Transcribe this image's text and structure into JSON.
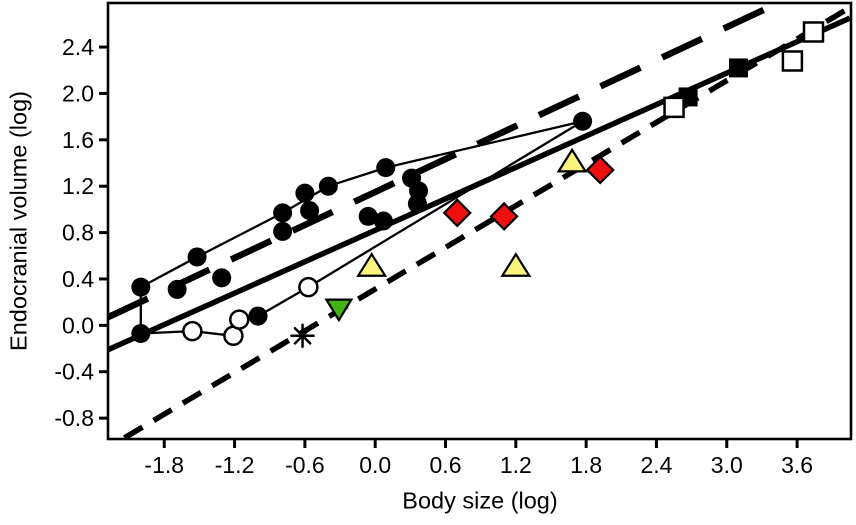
{
  "figure": {
    "background": "#ffffff",
    "text_color": "#000000",
    "accent_colors": {
      "red_diamond": "#ee0f0f",
      "yellow_triangle": "#faf57e",
      "green_triangle": "#43b414",
      "marker_black": "#000000",
      "marker_open_fill": "#ffffff"
    }
  },
  "chart_data": {
    "type": "scatter",
    "title": "",
    "xlabel": "Body size (log)",
    "ylabel": "Endocranial volume (log)",
    "xlim": [
      -2.28,
      4.06
    ],
    "ylim": [
      -0.98,
      2.78
    ],
    "x_ticks": [
      -1.8,
      -1.2,
      -0.6,
      0.0,
      0.6,
      1.2,
      1.8,
      2.4,
      3.0,
      3.6
    ],
    "y_ticks": [
      -0.8,
      -0.4,
      0.0,
      0.4,
      0.8,
      1.2,
      1.6,
      2.0,
      2.4
    ],
    "grid": false,
    "legend": "none",
    "frame": "full-box",
    "regression_lines": [
      {
        "name": "long-dash-regression-line",
        "style": "long-dash",
        "x1": -2.28,
        "y1": 0.07,
        "x2": 3.44,
        "y2": 2.78
      },
      {
        "name": "short-dash-regression-line",
        "style": "short-dash",
        "x1": -2.14,
        "y1": -0.97,
        "x2": 4.05,
        "y2": 2.74
      },
      {
        "name": "solid-regression-line",
        "style": "solid",
        "x1": -2.28,
        "y1": -0.21,
        "x2": 4.05,
        "y2": 2.65
      }
    ],
    "connector_paths": [
      {
        "name": "upper-lineage-path",
        "points": [
          [
            -2.0,
            -0.07
          ],
          [
            -2.0,
            0.33
          ],
          [
            -1.52,
            0.59
          ],
          [
            -0.79,
            0.97
          ],
          [
            -0.4,
            1.2
          ],
          [
            0.09,
            1.36
          ],
          [
            1.77,
            1.76
          ]
        ]
      },
      {
        "name": "lower-lineage-path",
        "points": [
          [
            -2.0,
            -0.07
          ],
          [
            -1.56,
            -0.05
          ],
          [
            -1.21,
            -0.09
          ],
          [
            -1.16,
            0.05
          ],
          [
            -1.0,
            0.08
          ],
          [
            -0.57,
            0.33
          ],
          [
            1.77,
            1.76
          ]
        ]
      }
    ],
    "series": [
      {
        "name": "filled-circles",
        "marker": "circle-filled",
        "fill": "#000000",
        "points": [
          [
            -2.0,
            0.33
          ],
          [
            -2.0,
            -0.07
          ],
          [
            -1.69,
            0.31
          ],
          [
            -1.52,
            0.59
          ],
          [
            -1.31,
            0.41
          ],
          [
            -1.0,
            0.08
          ],
          [
            -0.79,
            0.97
          ],
          [
            -0.79,
            0.81
          ],
          [
            -0.6,
            1.14
          ],
          [
            -0.56,
            0.99
          ],
          [
            -0.4,
            1.2
          ],
          [
            -0.06,
            0.94
          ],
          [
            0.07,
            0.9
          ],
          [
            0.09,
            1.36
          ],
          [
            0.31,
            1.27
          ],
          [
            0.37,
            1.16
          ],
          [
            0.36,
            1.05
          ],
          [
            1.77,
            1.76
          ]
        ]
      },
      {
        "name": "open-circles",
        "marker": "circle-open",
        "fill": "#ffffff",
        "points": [
          [
            -1.56,
            -0.05
          ],
          [
            -1.21,
            -0.09
          ],
          [
            -1.16,
            0.05
          ],
          [
            -0.57,
            0.33
          ]
        ]
      },
      {
        "name": "yellow-triangles",
        "marker": "triangle-up",
        "fill": "#faf57e",
        "points": [
          [
            -0.03,
            0.51
          ],
          [
            1.2,
            0.51
          ],
          [
            1.68,
            1.41
          ]
        ]
      },
      {
        "name": "green-triangle-down",
        "marker": "triangle-down",
        "fill": "#43b414",
        "points": [
          [
            -0.31,
            0.14
          ]
        ]
      },
      {
        "name": "red-diamonds",
        "marker": "diamond",
        "fill": "#ee0f0f",
        "points": [
          [
            0.7,
            0.97
          ],
          [
            1.1,
            0.94
          ],
          [
            1.92,
            1.34
          ]
        ]
      },
      {
        "name": "asterisk-point",
        "marker": "asterisk",
        "fill": "#000000",
        "points": [
          [
            -0.62,
            -0.09
          ]
        ]
      },
      {
        "name": "filled-squares",
        "marker": "square-filled",
        "fill": "#000000",
        "points": [
          [
            2.67,
            1.97
          ],
          [
            3.1,
            2.22
          ]
        ]
      },
      {
        "name": "open-squares",
        "marker": "square-open",
        "fill": "#ffffff",
        "points": [
          [
            2.55,
            1.88
          ],
          [
            3.56,
            2.28
          ],
          [
            3.74,
            2.53
          ]
        ]
      }
    ]
  }
}
